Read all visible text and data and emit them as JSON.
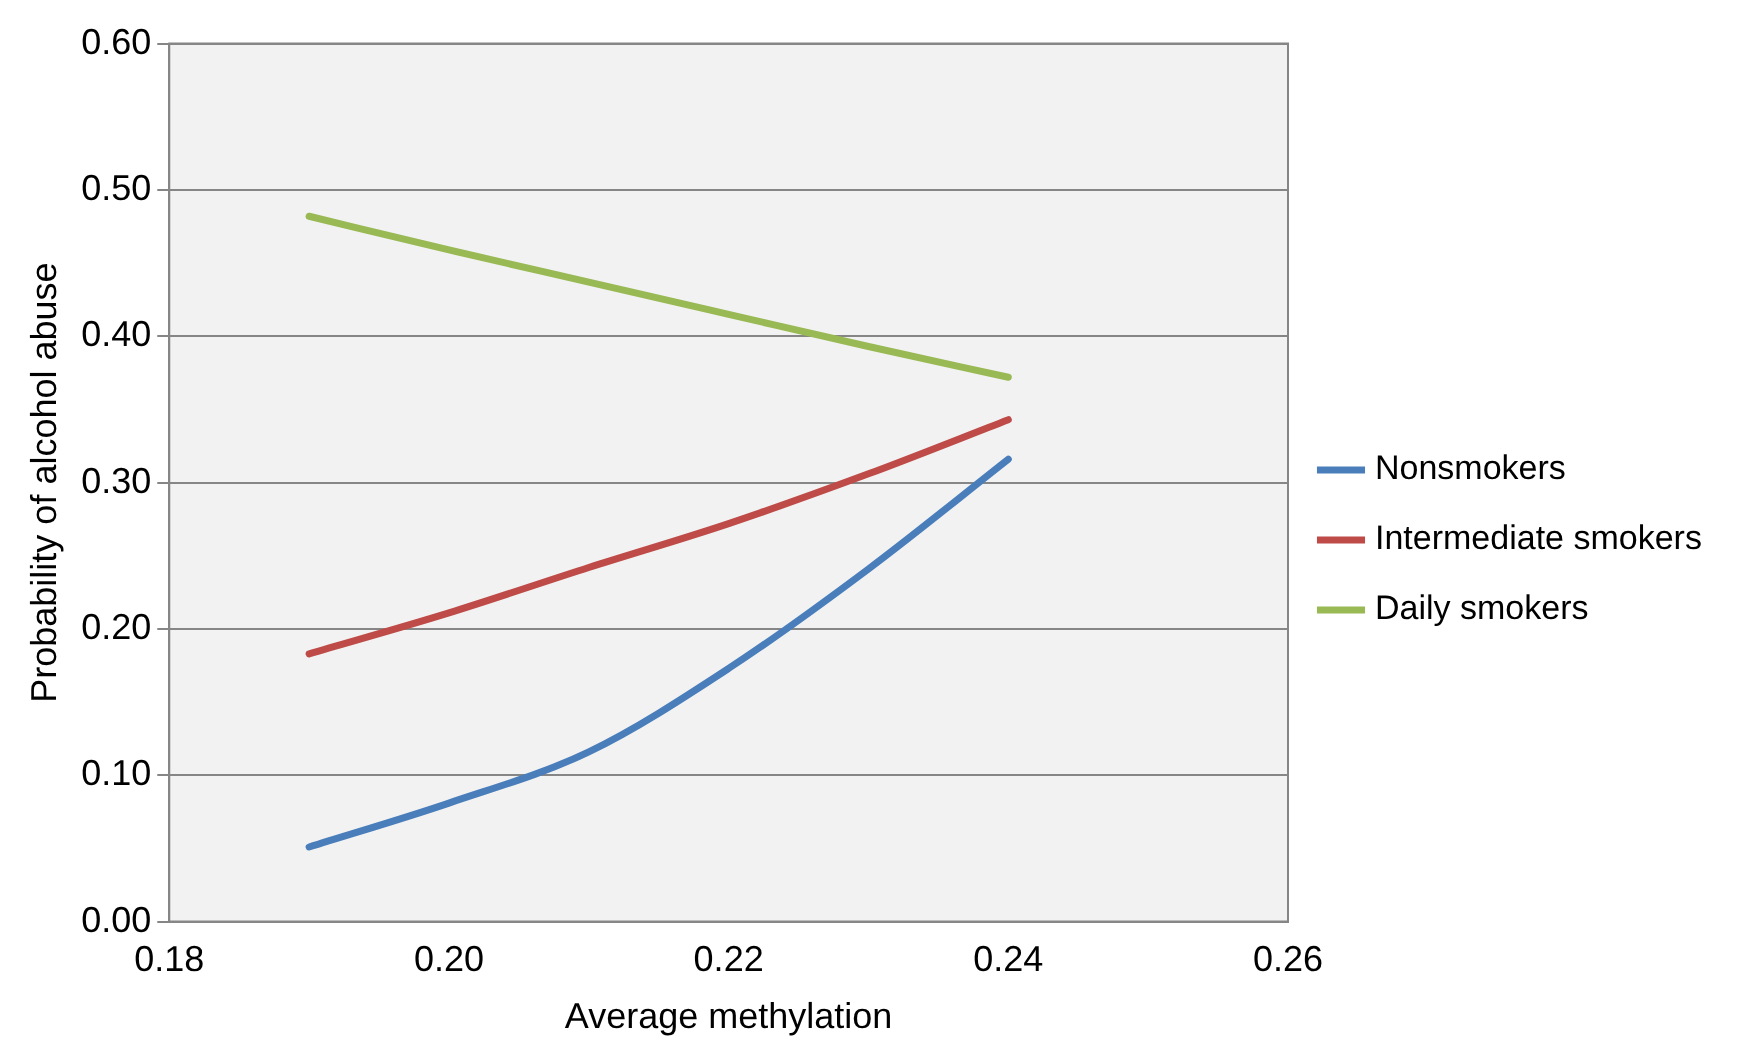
{
  "chart_data": {
    "type": "line",
    "xlabel": "Average methylation",
    "ylabel": "Probability of alcohol abuse",
    "x": [
      0.19,
      0.2,
      0.21,
      0.22,
      0.23,
      0.24
    ],
    "series": [
      {
        "name": "Nonsmokers",
        "color": "#4a7ebb",
        "values": [
          0.051,
          0.081,
          0.116,
          0.173,
          0.241,
          0.316
        ]
      },
      {
        "name": "Intermediate smokers",
        "color": "#be4b48",
        "values": [
          0.183,
          0.211,
          0.242,
          0.272,
          0.306,
          0.343
        ]
      },
      {
        "name": "Daily smokers",
        "color": "#98b954",
        "values": [
          0.482,
          0.459,
          0.437,
          0.415,
          0.393,
          0.372
        ]
      }
    ],
    "xlim": [
      0.18,
      0.26
    ],
    "xticks": [
      {
        "value": 0.18,
        "label": "0.18"
      },
      {
        "value": 0.2,
        "label": "0.20"
      },
      {
        "value": 0.22,
        "label": "0.22"
      },
      {
        "value": 0.24,
        "label": "0.24"
      },
      {
        "value": 0.26,
        "label": "0.26"
      }
    ],
    "ylim": [
      0,
      0.6
    ],
    "yticks": [
      {
        "value": 0,
        "label": "0.00"
      },
      {
        "value": 0.1,
        "label": "0.10"
      },
      {
        "value": 0.2,
        "label": "0.20"
      },
      {
        "value": 0.3,
        "label": "0.30"
      },
      {
        "value": 0.4,
        "label": "0.40"
      },
      {
        "value": 0.5,
        "label": "0.50"
      },
      {
        "value": 0.6,
        "label": "0.60"
      }
    ],
    "grid": "y",
    "legend": "right",
    "marker": "none",
    "line_style": "solid"
  }
}
